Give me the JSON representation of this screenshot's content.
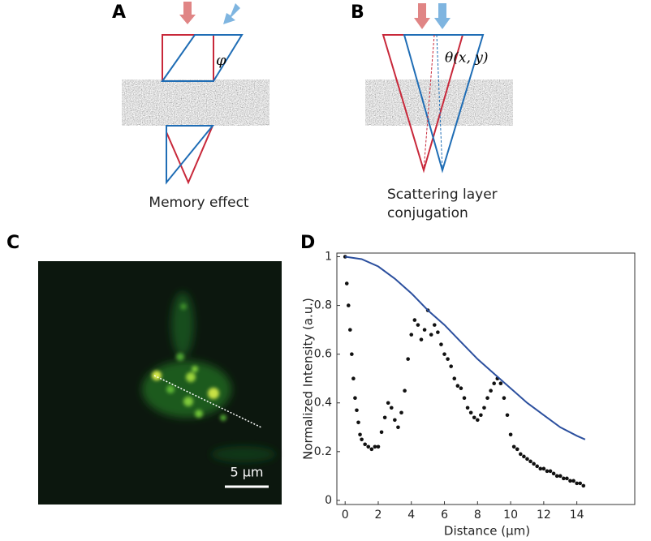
{
  "panel_labels": [
    "A",
    "B",
    "C",
    "D"
  ],
  "panel_a": {
    "caption": "Memory effect",
    "angle": "φ"
  },
  "panel_b": {
    "caption": [
      "Scattering layer",
      "conjugation"
    ],
    "angle": "θ(x, y)"
  },
  "panel_c": {
    "scale_bar": "5 μm"
  },
  "chart_data": {
    "type": "scatter",
    "x_label": "Distance (μm)",
    "y_label": "Normalized Intensity (a.u.)",
    "xlim": [
      -0.5,
      17.5
    ],
    "ylim": [
      -0.017,
      1.015
    ],
    "xticks": [
      0,
      2,
      4,
      6,
      8,
      10,
      12,
      14
    ],
    "yticks": [
      0,
      0.2,
      0.4,
      0.6,
      0.8,
      1
    ],
    "series": [
      {
        "type": "scatter",
        "color": "#111111",
        "x": [
          0,
          0.1,
          0.2,
          0.3,
          0.4,
          0.5,
          0.6,
          0.7,
          0.8,
          0.9,
          1.0,
          1.2,
          1.4,
          1.6,
          1.8,
          2.0,
          2.2,
          2.4,
          2.6,
          2.8,
          3.0,
          3.2,
          3.4,
          3.6,
          3.8,
          4.0,
          4.2,
          4.4,
          4.6,
          4.8,
          5.0,
          5.2,
          5.4,
          5.6,
          5.8,
          6.0,
          6.2,
          6.4,
          6.6,
          6.8,
          7.0,
          7.2,
          7.4,
          7.6,
          7.8,
          8.0,
          8.2,
          8.4,
          8.6,
          8.8,
          9.0,
          9.2,
          9.4,
          9.6,
          9.8,
          10.0,
          10.2,
          10.4,
          10.6,
          10.8,
          11.0,
          11.2,
          11.4,
          11.6,
          11.8,
          12.0,
          12.2,
          12.4,
          12.6,
          12.8,
          13.0,
          13.2,
          13.4,
          13.6,
          13.8,
          14.0,
          14.2,
          14.4
        ],
        "values": [
          1.0,
          0.89,
          0.8,
          0.7,
          0.6,
          0.5,
          0.42,
          0.37,
          0.32,
          0.27,
          0.25,
          0.23,
          0.22,
          0.21,
          0.22,
          0.22,
          0.28,
          0.34,
          0.4,
          0.38,
          0.33,
          0.3,
          0.36,
          0.45,
          0.58,
          0.68,
          0.74,
          0.72,
          0.66,
          0.7,
          0.78,
          0.68,
          0.72,
          0.69,
          0.64,
          0.6,
          0.58,
          0.55,
          0.5,
          0.47,
          0.46,
          0.42,
          0.38,
          0.36,
          0.34,
          0.33,
          0.35,
          0.38,
          0.42,
          0.45,
          0.48,
          0.5,
          0.48,
          0.42,
          0.35,
          0.27,
          0.22,
          0.21,
          0.19,
          0.18,
          0.17,
          0.16,
          0.15,
          0.14,
          0.13,
          0.13,
          0.12,
          0.12,
          0.11,
          0.1,
          0.1,
          0.09,
          0.09,
          0.08,
          0.08,
          0.07,
          0.07,
          0.06
        ]
      },
      {
        "type": "line",
        "color": "#2b4f9e",
        "x": [
          0,
          1,
          2,
          3,
          4,
          5,
          6,
          7,
          8,
          9,
          10,
          11,
          12,
          13,
          14,
          14.5
        ],
        "values": [
          1.0,
          0.99,
          0.96,
          0.91,
          0.85,
          0.78,
          0.72,
          0.65,
          0.58,
          0.52,
          0.46,
          0.4,
          0.35,
          0.3,
          0.265,
          0.25
        ]
      }
    ]
  }
}
